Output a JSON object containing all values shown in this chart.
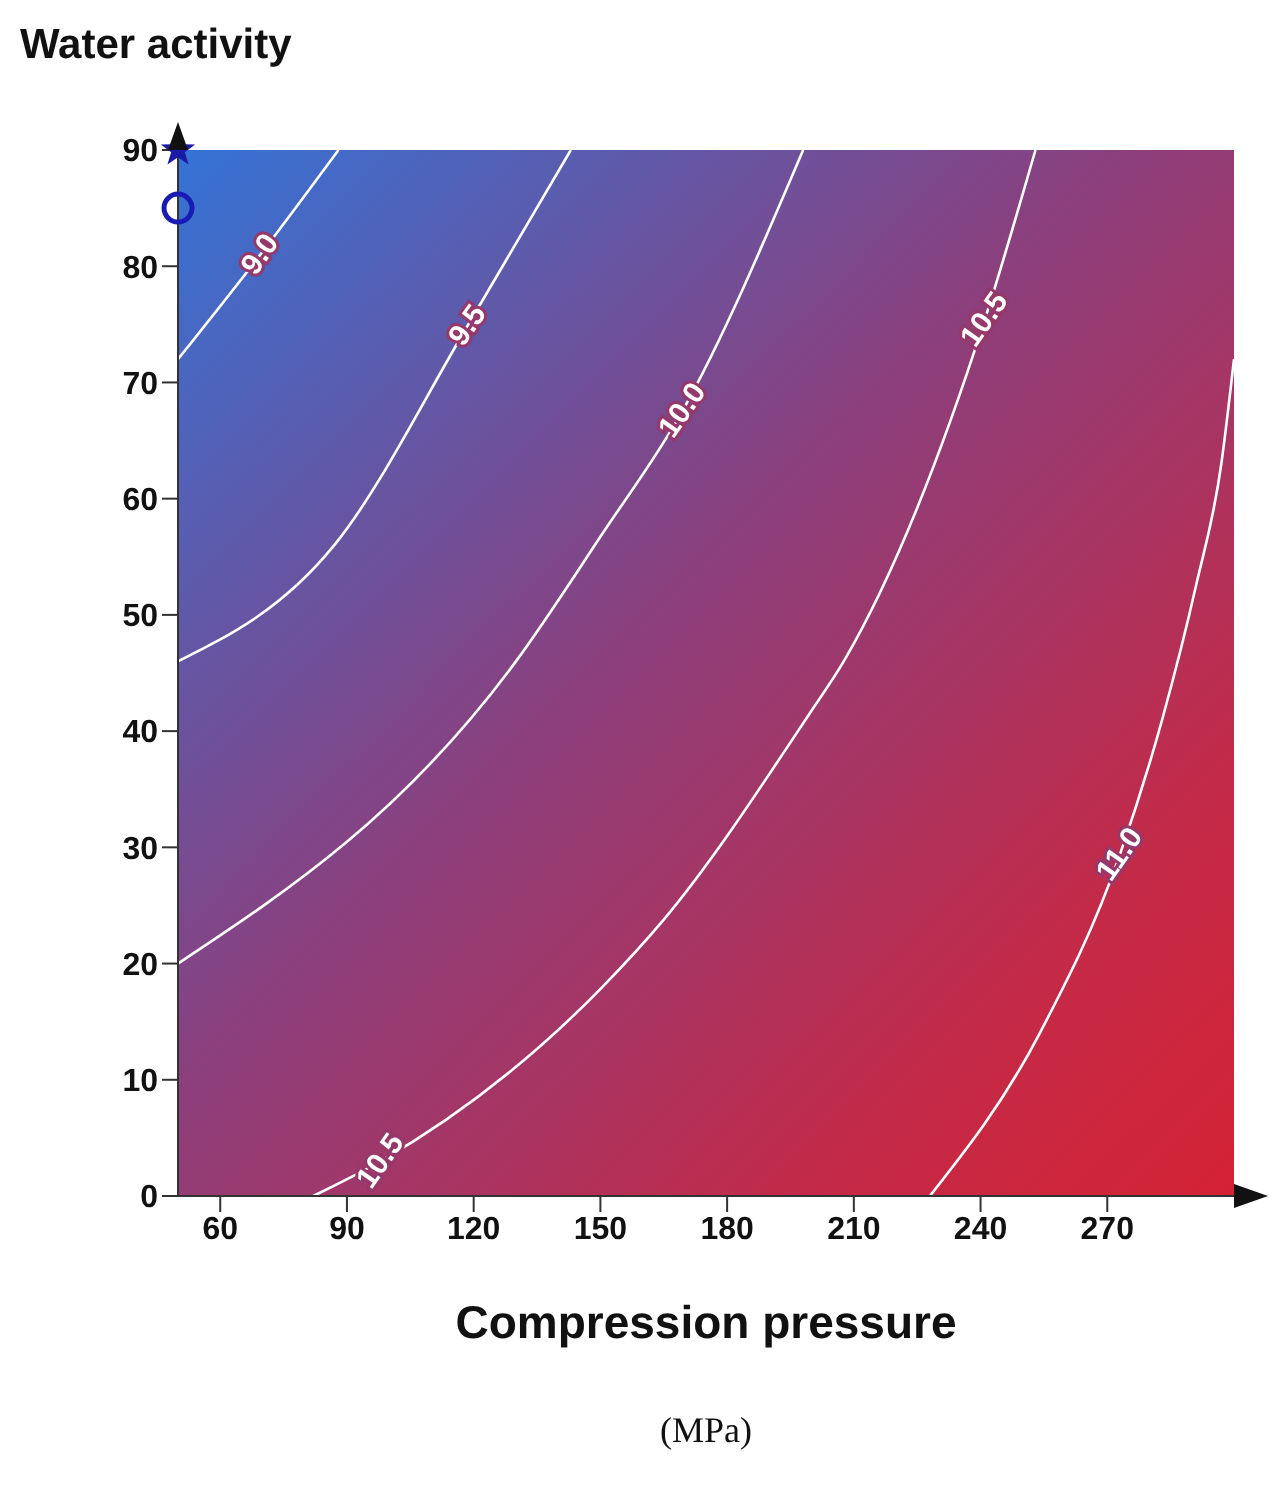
{
  "chart_data": {
    "type": "line",
    "xlabel": "Compression pressure",
    "ylabel": "Water activity",
    "xlim": [
      50,
      300
    ],
    "ylim": [
      0,
      90
    ],
    "xticks": [
      60,
      90,
      120,
      150,
      180,
      210,
      240,
      270
    ],
    "yticks": [
      0,
      10,
      20,
      30,
      40,
      50,
      60,
      70,
      80,
      90
    ],
    "grid": false,
    "line_style": "solid",
    "series": [
      {
        "color": "#ffffff",
        "marker": "none",
        "x": [
          50,
          69.5,
          88
        ],
        "values": [
          72,
          81,
          90
        ]
      },
      {
        "color": "#ffffff",
        "marker": "none",
        "x": [
          50,
          87,
          118.6,
          143
        ],
        "values": [
          46,
          56,
          74.9,
          90
        ]
      },
      {
        "color": "#ffffff",
        "marker": "none",
        "x": [
          50,
          130,
          150.5,
          169.5,
          198
        ],
        "values": [
          20,
          46,
          57,
          67.6,
          90
        ]
      },
      {
        "color": "#ffffff",
        "marker": "none",
        "x": [
          82,
          98,
          150.5,
          164.8,
          199.5,
          207.6,
          241,
          253
        ],
        "values": [
          0,
          3,
          18,
          23.7,
          41.5,
          46,
          75.4,
          90
        ]
      },
      {
        "color": "#ffffff",
        "marker": "none",
        "x": [
          228,
          254,
          273,
          283,
          291,
          297,
          300
        ],
        "values": [
          0,
          14,
          29.4,
          41,
          52.5,
          63,
          72
        ]
      },
      {
        "type": "scatter",
        "color": "#1a1aa8",
        "marker": "star",
        "x": [
          50
        ],
        "values": [
          90
        ]
      },
      {
        "type": "scatter",
        "color": "#1a1ab4",
        "marker": "circle",
        "x": [
          50
        ],
        "values": [
          85
        ]
      }
    ],
    "annotations": [
      {
        "text": "9.0",
        "x": 69.5,
        "y": 81
      },
      {
        "text": "9.5",
        "x": 118.6,
        "y": 74.9
      },
      {
        "text": "10.0",
        "x": 169.5,
        "y": 67.6
      },
      {
        "text": "10.5",
        "x": 241,
        "y": 75.4
      },
      {
        "text": "10.5",
        "x": 98,
        "y": 3
      },
      {
        "text": "11.0",
        "x": 273,
        "y": 29.4
      },
      "(MPa)"
    ]
  }
}
